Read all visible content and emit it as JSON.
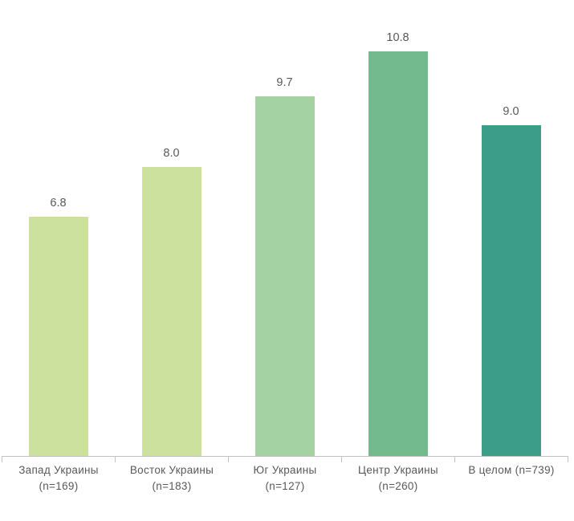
{
  "chart_data": {
    "type": "bar",
    "title": "",
    "xlabel": "",
    "ylabel": "",
    "categories": [
      "Запад Украины (n=169)",
      "Восток Украины (n=183)",
      "Юг Украины (n=127)",
      "Центр Украины (n=260)",
      "В целом (n=739)"
    ],
    "category_lines": [
      [
        "Запад Украины",
        "(n=169)"
      ],
      [
        "Восток Украины",
        "(n=183)"
      ],
      [
        "Юг Украины",
        "(n=127)"
      ],
      [
        "Центр Украины",
        "(n=260)"
      ],
      [
        "В целом (n=739)",
        ""
      ]
    ],
    "values": [
      6.8,
      8.0,
      9.7,
      10.8,
      9.0
    ],
    "value_labels": [
      "6.8",
      "8.0",
      "9.7",
      "10.8",
      "9.0"
    ],
    "bar_colors": [
      "#cde19e",
      "#cde19e",
      "#a5d2a3",
      "#73ba8e",
      "#3c9d88"
    ],
    "ylim": [
      1,
      12
    ],
    "grid": false,
    "legend": "none",
    "axis_color": "#c2c2c2",
    "label_color": "#595959",
    "background_color": "#ffffff"
  }
}
